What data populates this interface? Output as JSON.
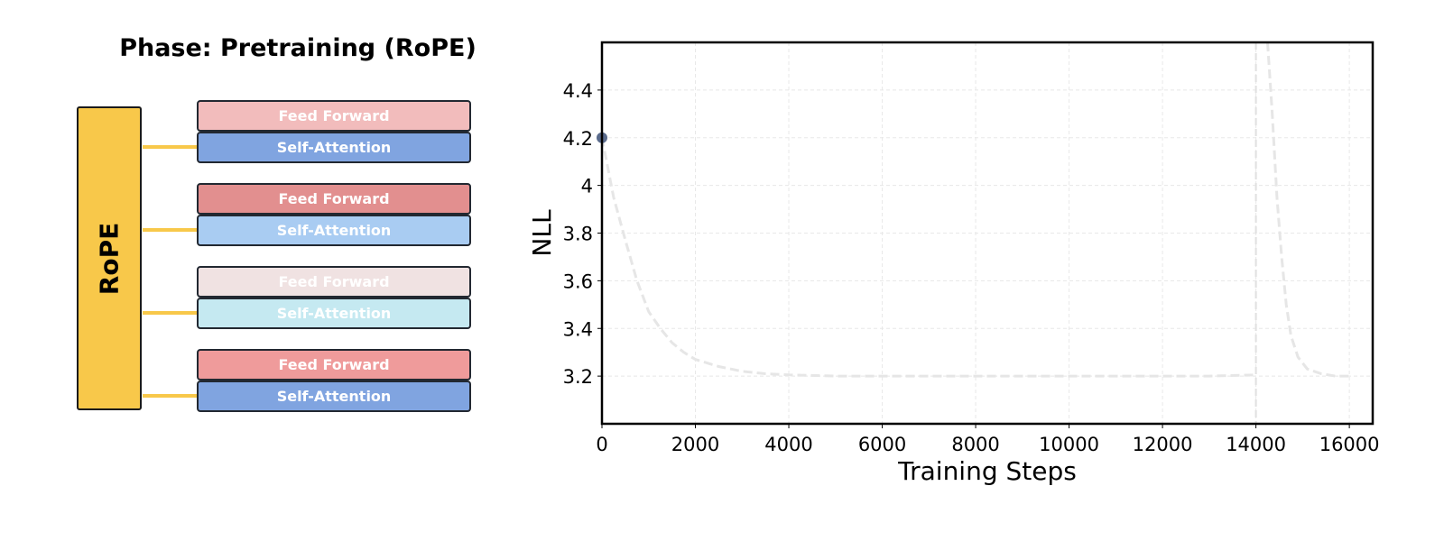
{
  "diagram": {
    "title": "Phase: Pretraining (RoPE)",
    "encoder_label": "RoPE",
    "encoder_color": "#f8c84a",
    "layers": [
      {
        "ff_label": "Feed Forward",
        "ff_color": "#f2bcbc",
        "sa_label": "Self-Attention",
        "sa_color": "#80a4e0"
      },
      {
        "ff_label": "Feed Forward",
        "ff_color": "#e28f8f",
        "sa_label": "Self-Attention",
        "sa_color": "#a9ccf2"
      },
      {
        "ff_label": "Feed Forward",
        "ff_color": "#f0e2e2",
        "sa_label": "Self-Attention",
        "sa_color": "#c5e9f1"
      },
      {
        "ff_label": "Feed Forward",
        "ff_color": "#ef9b9b",
        "sa_label": "Self-Attention",
        "sa_color": "#80a4e0"
      }
    ]
  },
  "chart_data": {
    "type": "line",
    "xlabel": "Training Steps",
    "ylabel": "NLL",
    "xlim": [
      0,
      16500
    ],
    "ylim": [
      3.0,
      4.6
    ],
    "xticks": [
      0,
      2000,
      4000,
      6000,
      8000,
      10000,
      12000,
      14000,
      16000
    ],
    "yticks": [
      3.2,
      3.4,
      3.6,
      3.8,
      4.0,
      4.2,
      4.4
    ],
    "grid": true,
    "series": [
      {
        "style": "dashed",
        "color": "#e6e6e6",
        "x": [
          0,
          250,
          500,
          750,
          1000,
          1250,
          1500,
          1750,
          2000,
          2500,
          3000,
          3500,
          4000,
          5000,
          6000,
          7000,
          8000,
          9000,
          10000,
          11000,
          12000,
          13000,
          14000
        ],
        "y": [
          4.2,
          3.95,
          3.77,
          3.6,
          3.47,
          3.4,
          3.34,
          3.3,
          3.27,
          3.24,
          3.22,
          3.21,
          3.205,
          3.2,
          3.2,
          3.2,
          3.2,
          3.2,
          3.2,
          3.2,
          3.2,
          3.2,
          3.205
        ]
      },
      {
        "style": "dashed",
        "color": "#e6e6e6",
        "x": [
          14250,
          14350,
          14450,
          14550,
          14650,
          14750,
          14900,
          15100,
          15400,
          15700,
          16000
        ],
        "y": [
          4.6,
          4.3,
          3.95,
          3.7,
          3.5,
          3.37,
          3.28,
          3.23,
          3.21,
          3.2,
          3.2
        ]
      }
    ],
    "vline": {
      "x": 14000,
      "color": "#e0e0e0",
      "style": "dashed"
    },
    "marker": {
      "x": 0,
      "y": 4.2,
      "color": "#5a6b8c"
    }
  }
}
